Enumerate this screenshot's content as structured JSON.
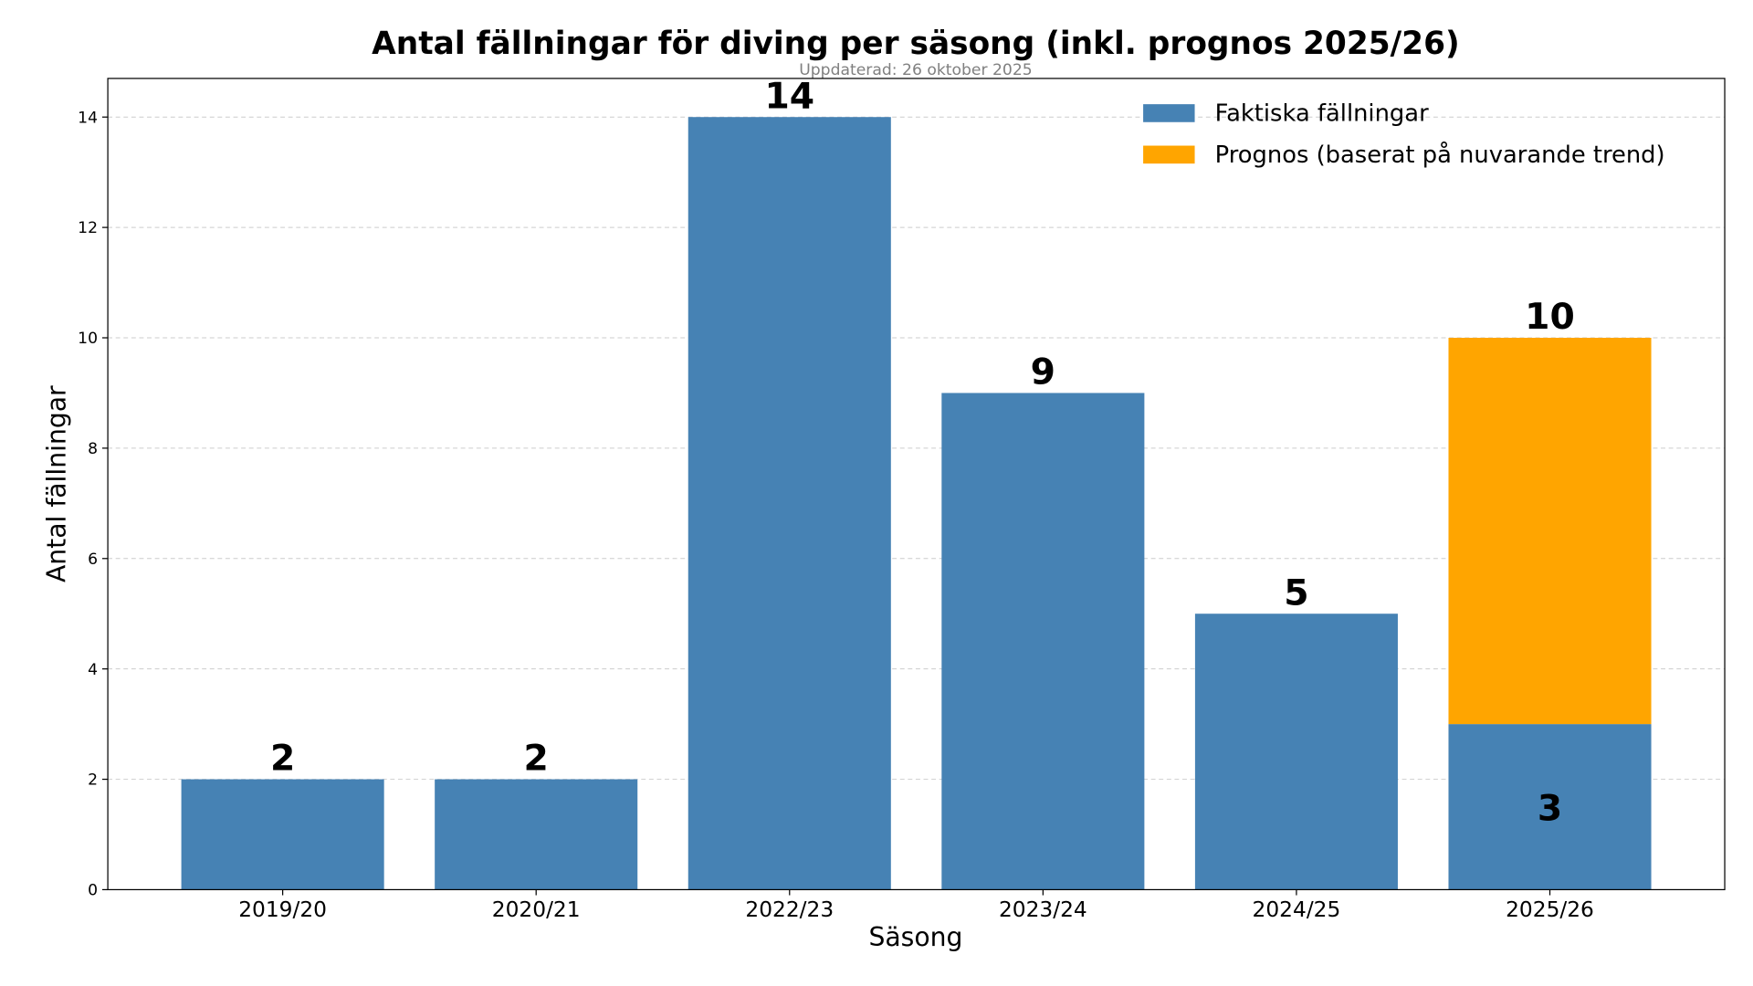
{
  "chart_data": {
    "type": "bar",
    "title": "Antal fällningar för diving per säsong (inkl. prognos 2025/26)",
    "subtitle": "Uppdaterad: 26 oktober 2025",
    "xlabel": "Säsong",
    "ylabel": "Antal fällningar",
    "categories": [
      "2019/20",
      "2020/21",
      "2022/23",
      "2023/24",
      "2024/25",
      "2025/26"
    ],
    "series": [
      {
        "name": "Faktiska fällningar",
        "values": [
          2,
          2,
          14,
          9,
          5,
          3
        ],
        "color": "#4682b4"
      },
      {
        "name": "Prognos (baserat på nuvarande trend)",
        "values": [
          0,
          0,
          0,
          0,
          0,
          7
        ],
        "color": "#ffa500"
      }
    ],
    "data_labels": [
      "2",
      "2",
      "14",
      "9",
      "5",
      "10"
    ],
    "inner_labels": [
      "",
      "",
      "",
      "",
      "",
      "3"
    ],
    "stacked": true,
    "ylim": [
      0,
      14.7
    ],
    "yticks": [
      0,
      2,
      4,
      6,
      8,
      10,
      12,
      14
    ],
    "grid": "y-dashed",
    "legend_position": "top-right"
  }
}
